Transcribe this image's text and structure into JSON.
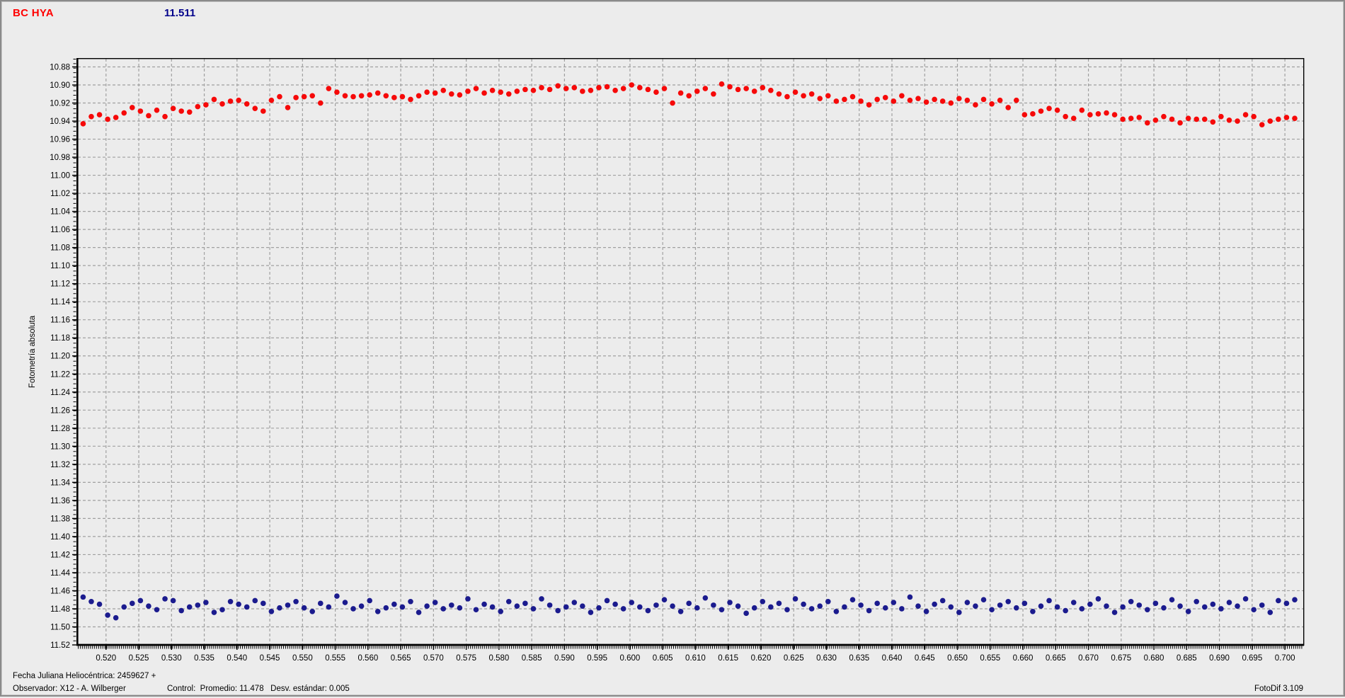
{
  "header": {
    "star_name": "BC HYA",
    "star_name_color": "#ff0000",
    "magnitude_value": "11.511",
    "magnitude_color": "#00008b"
  },
  "footer": {
    "julian_date_line": "Fecha Juliana Heliocéntrica: 2459627 +",
    "observer_line": "Observador: X12 - A. Wilberger",
    "control_line": "Control:  Promedio: 11.478   Desv. estándar: 0.005",
    "version_line": "FotoDif 3.109"
  },
  "chart_data": {
    "type": "scatter",
    "title": "",
    "xlabel": "",
    "ylabel": "Fotometría absoluta",
    "xlim": [
      0.5157,
      0.7028
    ],
    "ylim": [
      10.871,
      11.52
    ],
    "y_inverted_magnitude_axis": true,
    "grid": true,
    "grid_color": "#a0a0a0",
    "x_tick_labels": [
      "0.520",
      "0.525",
      "0.530",
      "0.535",
      "0.540",
      "0.545",
      "0.550",
      "0.555",
      "0.560",
      "0.565",
      "0.570",
      "0.575",
      "0.580",
      "0.585",
      "0.590",
      "0.595",
      "0.600",
      "0.605",
      "0.610",
      "0.615",
      "0.620",
      "0.625",
      "0.630",
      "0.635",
      "0.640",
      "0.645",
      "0.650",
      "0.655",
      "0.660",
      "0.665",
      "0.670",
      "0.675",
      "0.680",
      "0.685",
      "0.690",
      "0.695",
      "0.700"
    ],
    "y_tick_labels": [
      "10.88",
      "10.90",
      "10.92",
      "10.94",
      "10.96",
      "10.98",
      "11.00",
      "11.02",
      "11.04",
      "11.06",
      "11.08",
      "11.10",
      "11.12",
      "11.14",
      "11.16",
      "11.18",
      "11.20",
      "11.22",
      "11.24",
      "11.26",
      "11.28",
      "11.30",
      "11.32",
      "11.34",
      "11.36",
      "11.38",
      "11.40",
      "11.42",
      "11.44",
      "11.46",
      "11.48",
      "11.50",
      "11.52"
    ],
    "x_start": 0.5165,
    "x_step": 0.00125,
    "series": [
      {
        "name": "variable-bc-hya",
        "color": "#f60909",
        "values": [
          10.943,
          10.935,
          10.933,
          10.938,
          10.936,
          10.931,
          10.925,
          10.929,
          10.934,
          10.928,
          10.935,
          10.926,
          10.929,
          10.93,
          10.924,
          10.922,
          10.916,
          10.921,
          10.918,
          10.917,
          10.921,
          10.926,
          10.929,
          10.917,
          10.913,
          10.925,
          10.914,
          10.913,
          10.912,
          10.92,
          10.904,
          10.908,
          10.912,
          10.913,
          10.912,
          10.911,
          10.909,
          10.912,
          10.914,
          10.913,
          10.916,
          10.912,
          10.908,
          10.909,
          10.906,
          10.91,
          10.911,
          10.907,
          10.904,
          10.909,
          10.906,
          10.908,
          10.91,
          10.907,
          10.905,
          10.906,
          10.903,
          10.905,
          10.901,
          10.904,
          10.903,
          10.907,
          10.906,
          10.903,
          10.902,
          10.906,
          10.904,
          10.9,
          10.903,
          10.905,
          10.908,
          10.904,
          10.92,
          10.909,
          10.912,
          10.907,
          10.904,
          10.91,
          10.899,
          10.902,
          10.905,
          10.904,
          10.907,
          10.903,
          10.906,
          10.91,
          10.913,
          10.908,
          10.912,
          10.91,
          10.915,
          10.912,
          10.918,
          10.916,
          10.913,
          10.918,
          10.922,
          10.916,
          10.914,
          10.918,
          10.912,
          10.917,
          10.915,
          10.919,
          10.916,
          10.918,
          10.92,
          10.915,
          10.917,
          10.922,
          10.916,
          10.921,
          10.917,
          10.925,
          10.917,
          10.933,
          10.932,
          10.929,
          10.926,
          10.928,
          10.935,
          10.937,
          10.928,
          10.933,
          10.932,
          10.931,
          10.933,
          10.938,
          10.937,
          10.936,
          10.942,
          10.939,
          10.935,
          10.938,
          10.942,
          10.937,
          10.938,
          10.938,
          10.941,
          10.935,
          10.939,
          10.94,
          10.933,
          10.935,
          10.944,
          10.94,
          10.938,
          10.936,
          10.937
        ]
      },
      {
        "name": "control-star",
        "color": "#1b1b8e",
        "values": [
          11.467,
          11.472,
          11.475,
          11.487,
          11.49,
          11.478,
          11.474,
          11.471,
          11.477,
          11.481,
          11.469,
          11.471,
          11.482,
          11.478,
          11.476,
          11.473,
          11.484,
          11.481,
          11.472,
          11.475,
          11.478,
          11.471,
          11.474,
          11.483,
          11.479,
          11.476,
          11.472,
          11.479,
          11.483,
          11.474,
          11.478,
          11.466,
          11.473,
          11.48,
          11.477,
          11.471,
          11.483,
          11.479,
          11.475,
          11.478,
          11.472,
          11.484,
          11.477,
          11.473,
          11.48,
          11.476,
          11.479,
          11.469,
          11.481,
          11.475,
          11.478,
          11.483,
          11.472,
          11.477,
          11.474,
          11.48,
          11.469,
          11.476,
          11.482,
          11.478,
          11.473,
          11.477,
          11.484,
          11.479,
          11.471,
          11.475,
          11.48,
          11.473,
          11.478,
          11.482,
          11.476,
          11.47,
          11.477,
          11.483,
          11.474,
          11.479,
          11.468,
          11.476,
          11.481,
          11.473,
          11.477,
          11.485,
          11.479,
          11.472,
          11.478,
          11.474,
          11.481,
          11.469,
          11.475,
          11.48,
          11.477,
          11.472,
          11.483,
          11.478,
          11.47,
          11.476,
          11.482,
          11.474,
          11.479,
          11.473,
          11.48,
          11.467,
          11.477,
          11.483,
          11.475,
          11.471,
          11.478,
          11.484,
          11.473,
          11.477,
          11.47,
          11.481,
          11.476,
          11.472,
          11.479,
          11.474,
          11.483,
          11.477,
          11.471,
          11.478,
          11.482,
          11.473,
          11.48,
          11.475,
          11.469,
          11.477,
          11.484,
          11.478,
          11.472,
          11.476,
          11.481,
          11.474,
          11.479,
          11.47,
          11.477,
          11.483,
          11.472,
          11.478,
          11.475,
          11.48,
          11.473,
          11.477,
          11.469,
          11.481,
          11.476,
          11.484,
          11.471,
          11.474,
          11.47
        ]
      }
    ]
  }
}
